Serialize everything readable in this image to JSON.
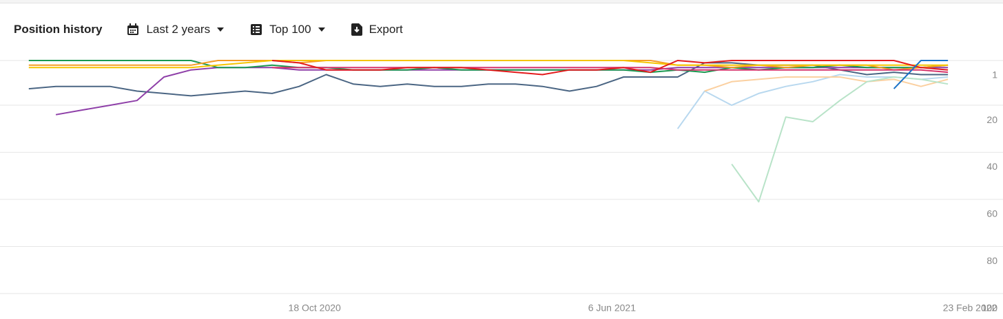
{
  "toolbar": {
    "title": "Position history",
    "period": "Last 2 years",
    "top": "Top 100",
    "export": "Export"
  },
  "chart_data": {
    "type": "line",
    "x": [
      "2020-03-10",
      "2020-03-31",
      "2020-04-21",
      "2020-05-12",
      "2020-06-02",
      "2020-06-23",
      "2020-07-14",
      "2020-08-04",
      "2020-08-25",
      "2020-09-15",
      "2020-10-06",
      "2020-10-27",
      "2020-11-17",
      "2020-12-08",
      "2020-12-29",
      "2021-01-19",
      "2021-02-09",
      "2021-03-02",
      "2021-03-23",
      "2021-04-13",
      "2021-05-04",
      "2021-05-25",
      "2021-06-15",
      "2021-07-06",
      "2021-07-27",
      "2021-08-17",
      "2021-09-07",
      "2021-09-28",
      "2021-10-19",
      "2021-11-09",
      "2021-11-30",
      "2021-12-21",
      "2022-01-11",
      "2022-02-01",
      "2022-02-22"
    ],
    "xlim": [
      "2020-03-01",
      "2022-02-23"
    ],
    "xticks": [
      {
        "value": "2020-10-18",
        "label": "18 Oct 2020"
      },
      {
        "value": "2021-06-06",
        "label": "6 Jun 2021"
      },
      {
        "value": "2022-02-23",
        "label": "23 Feb 2022"
      }
    ],
    "ylim": [
      1,
      100
    ],
    "y_inverted": true,
    "yticks": [
      1,
      20,
      40,
      60,
      80,
      100
    ],
    "grid": true,
    "series": [
      {
        "color": "#4a6583",
        "values": [
          13,
          12,
          12,
          12,
          14,
          15,
          16,
          15,
          14,
          15,
          12,
          7,
          11,
          12,
          11,
          12,
          12,
          11,
          11,
          12,
          14,
          12,
          8,
          8,
          8,
          2,
          2,
          3,
          3,
          3,
          5,
          7,
          6,
          7,
          7
        ]
      },
      {
        "color": "#8e3fa8",
        "values": [
          null,
          24,
          22,
          20,
          18,
          8,
          5,
          4,
          4,
          4,
          5,
          5,
          5,
          5,
          5,
          5,
          5,
          5,
          5,
          5,
          5,
          5,
          5,
          5,
          4,
          4,
          4,
          4,
          4,
          4,
          4,
          4,
          4,
          4,
          4
        ]
      },
      {
        "color": "#1a9850",
        "values": [
          1,
          1,
          1,
          1,
          1,
          1,
          1,
          4,
          4,
          3,
          4,
          4,
          5,
          5,
          5,
          4,
          5,
          5,
          5,
          5,
          5,
          5,
          5,
          6,
          5,
          6,
          4,
          5,
          4,
          4,
          3,
          4,
          4,
          4,
          3
        ]
      },
      {
        "color": "#f59b23",
        "values": [
          3,
          3,
          3,
          3,
          3,
          3,
          3,
          1,
          1,
          1,
          2,
          1,
          1,
          1,
          1,
          1,
          1,
          1,
          1,
          1,
          1,
          1,
          1,
          1,
          3,
          3,
          4,
          3,
          4,
          3,
          3,
          3,
          5,
          4,
          3
        ]
      },
      {
        "color": "#f5c400",
        "values": [
          4,
          4,
          4,
          4,
          4,
          4,
          4,
          3,
          2,
          1,
          1,
          1,
          1,
          1,
          1,
          1,
          1,
          1,
          1,
          1,
          1,
          1,
          1,
          2,
          3,
          3,
          3,
          3,
          3,
          3,
          3,
          3,
          3,
          3,
          3
        ]
      },
      {
        "color": "#d6336c",
        "values": [
          null,
          null,
          null,
          null,
          null,
          null,
          null,
          null,
          null,
          4,
          4,
          4,
          4,
          4,
          4,
          4,
          4,
          4,
          4,
          4,
          4,
          4,
          4,
          4,
          5,
          5,
          5,
          5,
          5,
          5,
          5,
          5,
          5,
          5,
          6
        ]
      },
      {
        "color": "#e31a1c",
        "values": [
          null,
          null,
          null,
          null,
          null,
          null,
          null,
          null,
          null,
          1,
          2,
          5,
          5,
          5,
          4,
          4,
          4,
          5,
          6,
          7,
          5,
          5,
          4,
          6,
          1,
          2,
          1,
          1,
          1,
          1,
          1,
          1,
          1,
          4,
          5
        ]
      },
      {
        "color": "#b8d8ef",
        "values": [
          null,
          null,
          null,
          null,
          null,
          null,
          null,
          null,
          null,
          null,
          null,
          null,
          null,
          null,
          null,
          null,
          null,
          null,
          null,
          null,
          null,
          null,
          null,
          null,
          30,
          14,
          20,
          15,
          12,
          10,
          7,
          8,
          8,
          9,
          8
        ]
      },
      {
        "color": "#fbd0a0",
        "values": [
          null,
          null,
          null,
          null,
          null,
          null,
          null,
          null,
          null,
          null,
          null,
          null,
          null,
          null,
          null,
          null,
          null,
          null,
          null,
          null,
          null,
          null,
          null,
          null,
          null,
          14,
          10,
          9,
          8,
          8,
          8,
          10,
          9,
          12,
          9
        ]
      },
      {
        "color": "#b8e3c8",
        "values": [
          null,
          null,
          null,
          null,
          null,
          null,
          null,
          null,
          null,
          null,
          null,
          null,
          null,
          null,
          null,
          null,
          null,
          null,
          null,
          null,
          null,
          null,
          null,
          null,
          null,
          null,
          45,
          61,
          25,
          27,
          18,
          10,
          8,
          9,
          11
        ]
      },
      {
        "color": "#1a73c8",
        "values": [
          null,
          null,
          null,
          null,
          null,
          null,
          null,
          null,
          null,
          null,
          null,
          null,
          null,
          null,
          null,
          null,
          null,
          null,
          null,
          null,
          null,
          null,
          null,
          null,
          null,
          null,
          null,
          null,
          null,
          null,
          null,
          null,
          13,
          1,
          1
        ]
      }
    ]
  }
}
